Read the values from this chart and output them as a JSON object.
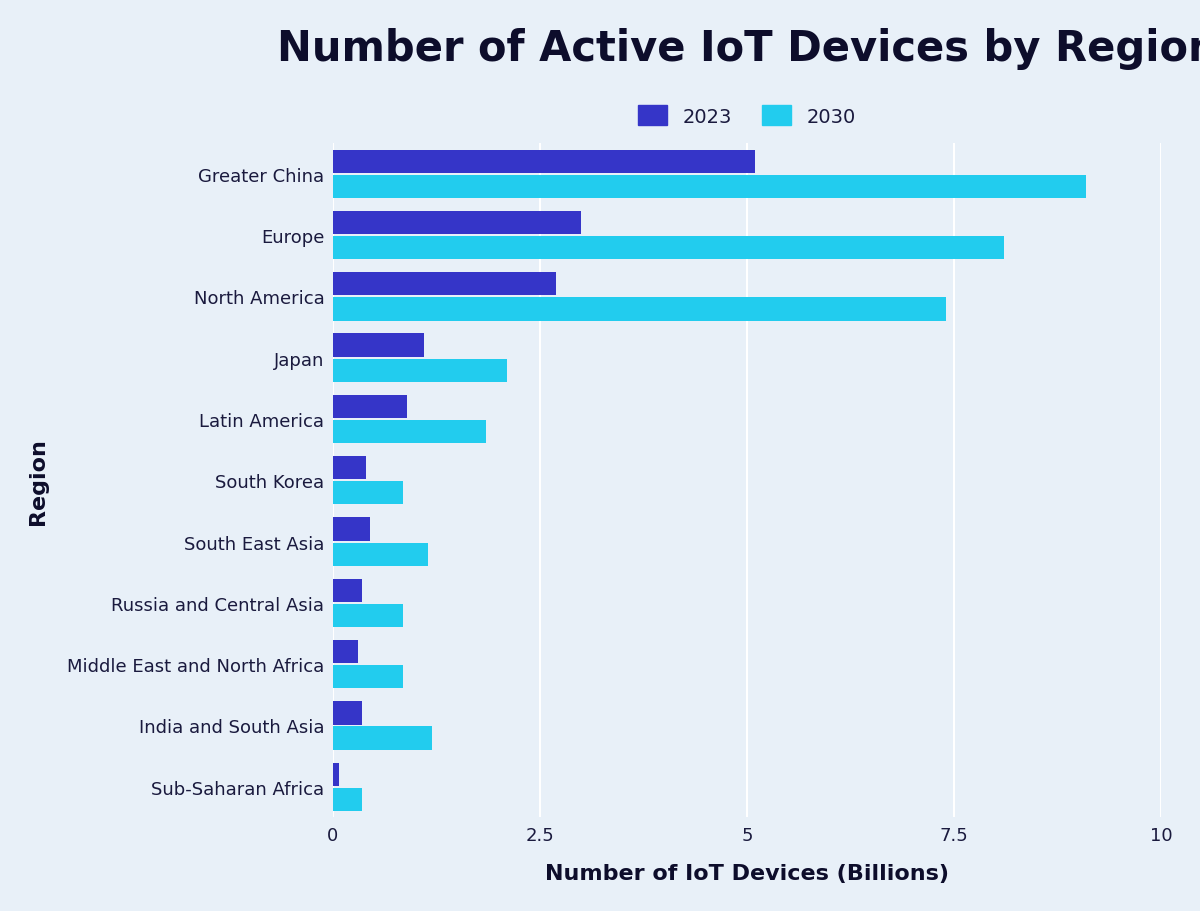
{
  "title": "Number of Active IoT Devices by Region",
  "xlabel": "Number of IoT Devices (Billions)",
  "ylabel": "Region",
  "background_color": "#e8f0f8",
  "regions": [
    "Greater China",
    "Europe",
    "North America",
    "Japan",
    "Latin America",
    "South Korea",
    "South East Asia",
    "Russia and Central Asia",
    "Middle East and North Africa",
    "India and South Asia",
    "Sub-Saharan Africa"
  ],
  "values_2023": [
    5.1,
    3.0,
    2.7,
    1.1,
    0.9,
    0.4,
    0.45,
    0.35,
    0.3,
    0.35,
    0.08
  ],
  "values_2030": [
    9.1,
    8.1,
    7.4,
    2.1,
    1.85,
    0.85,
    1.15,
    0.85,
    0.85,
    1.2,
    0.35
  ],
  "color_2023": "#3535c8",
  "color_2030": "#22ccee",
  "xlim": [
    0,
    10
  ],
  "xticks": [
    0,
    2.5,
    5,
    7.5,
    10
  ],
  "xtick_labels": [
    "0",
    "2.5",
    "5",
    "7.5",
    "10"
  ],
  "legend_labels": [
    "2023",
    "2030"
  ],
  "title_fontsize": 30,
  "axis_label_fontsize": 16,
  "tick_fontsize": 13,
  "legend_fontsize": 14,
  "bar_height": 0.38,
  "bar_gap": 0.03
}
